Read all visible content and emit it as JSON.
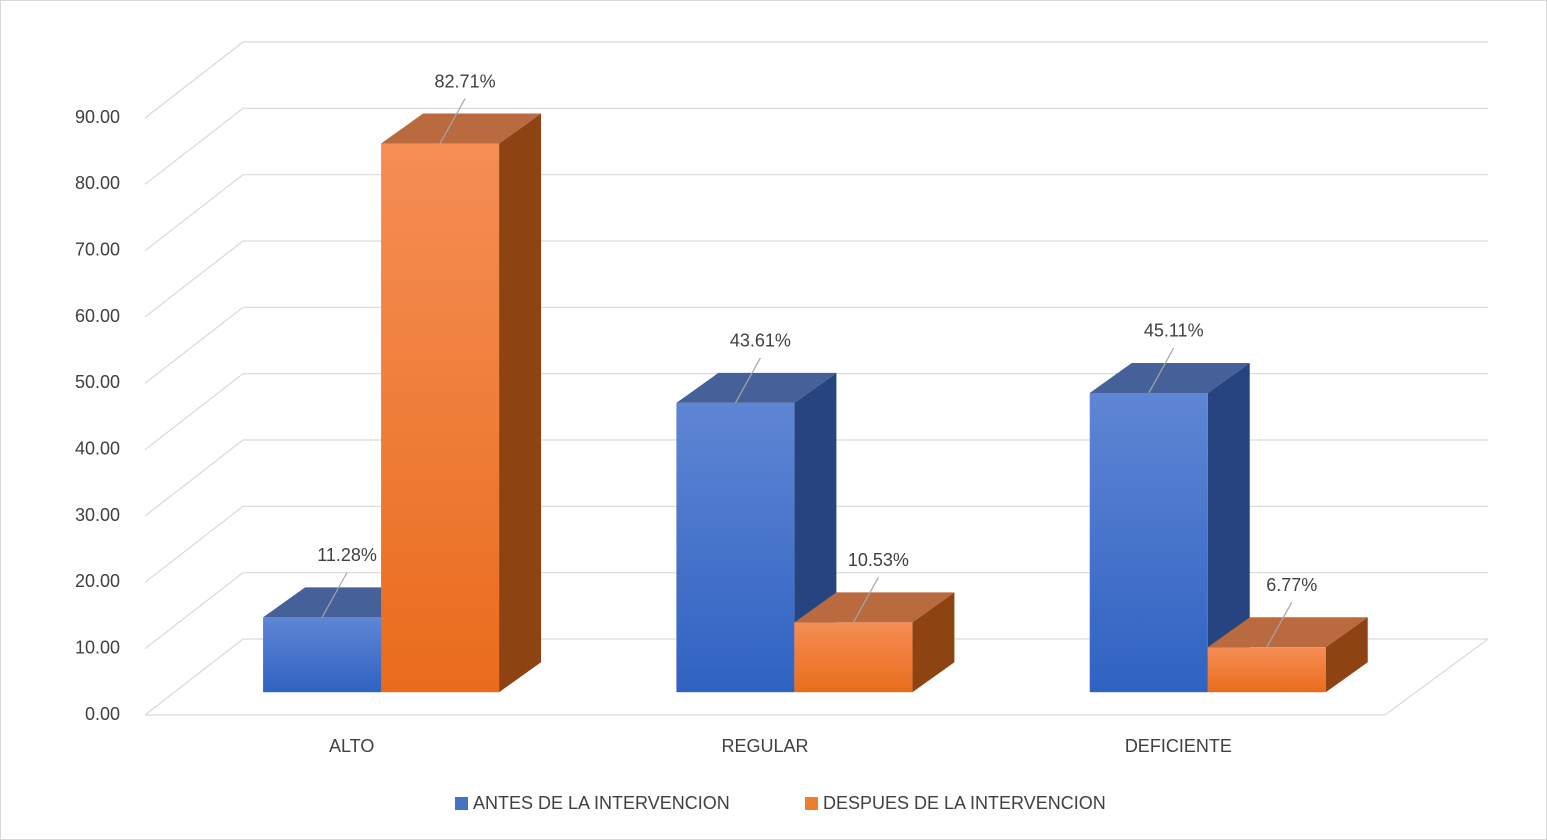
{
  "chart_data": {
    "type": "bar3d",
    "categories": [
      "ALTO",
      "REGULAR",
      "DEFICIENTE"
    ],
    "series": [
      {
        "name": "ANTES DE LA INTERVENCION",
        "color": "#4472c4",
        "values": [
          11.28,
          43.61,
          45.11
        ],
        "value_labels": [
          "11.28%",
          "43.61%",
          "45.11%"
        ]
      },
      {
        "name": "DESPUES DE LA INTERVENCION",
        "color": "#ed7d31",
        "values": [
          82.71,
          10.53,
          6.77
        ],
        "value_labels": [
          "82.71%",
          "10.53%",
          "6.77%"
        ]
      }
    ],
    "ylim": [
      0,
      90
    ],
    "yticks": [
      {
        "value": 0,
        "label": "0.00"
      },
      {
        "value": 10,
        "label": "10.00"
      },
      {
        "value": 20,
        "label": "20.00"
      },
      {
        "value": 30,
        "label": "30.00"
      },
      {
        "value": 40,
        "label": "40.00"
      },
      {
        "value": 50,
        "label": "50.00"
      },
      {
        "value": 60,
        "label": "60.00"
      },
      {
        "value": 70,
        "label": "70.00"
      },
      {
        "value": 80,
        "label": "80.00"
      },
      {
        "value": 90,
        "label": "90.00"
      }
    ],
    "grid": true,
    "legend": "bottom"
  }
}
